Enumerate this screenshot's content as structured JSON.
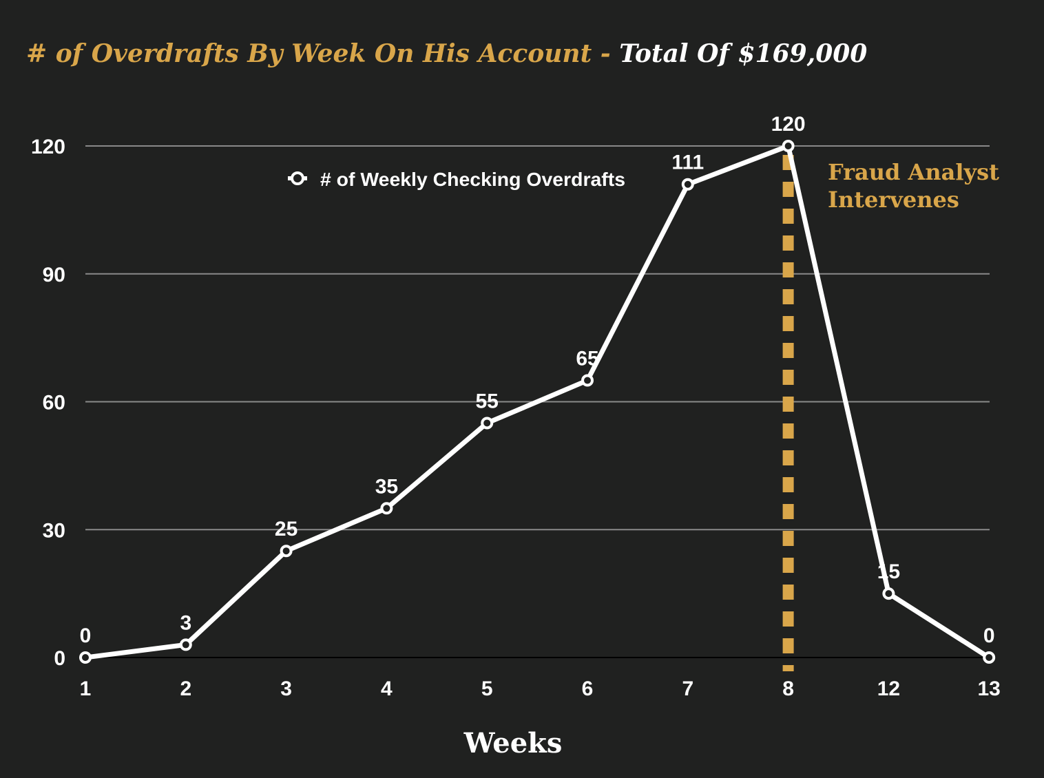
{
  "colors": {
    "background": "#202120",
    "accent": "#D9A64A",
    "line": "#FFFFFF",
    "grid": "#8A8A8A"
  },
  "chart_data": {
    "type": "line",
    "title": "# of Overdrafts By Week On His Account",
    "title_separator": " - ",
    "subtitle": "Total Of $169,000",
    "xlabel": "Weeks",
    "ylabel": "",
    "categories": [
      "1",
      "2",
      "3",
      "4",
      "5",
      "6",
      "7",
      "8",
      "12",
      "13"
    ],
    "series": [
      {
        "name": "# of Weekly Checking Overdrafts",
        "values": [
          0,
          3,
          25,
          35,
          55,
          65,
          111,
          120,
          15,
          0
        ]
      }
    ],
    "ylim": [
      0,
      120
    ],
    "yticks": [
      0,
      30,
      60,
      90,
      120
    ],
    "grid": true,
    "legend_position": "top-center",
    "annotation": {
      "text_line1": "Fraud Analyst",
      "text_line2": "Intervenes",
      "at_category": "8"
    }
  }
}
